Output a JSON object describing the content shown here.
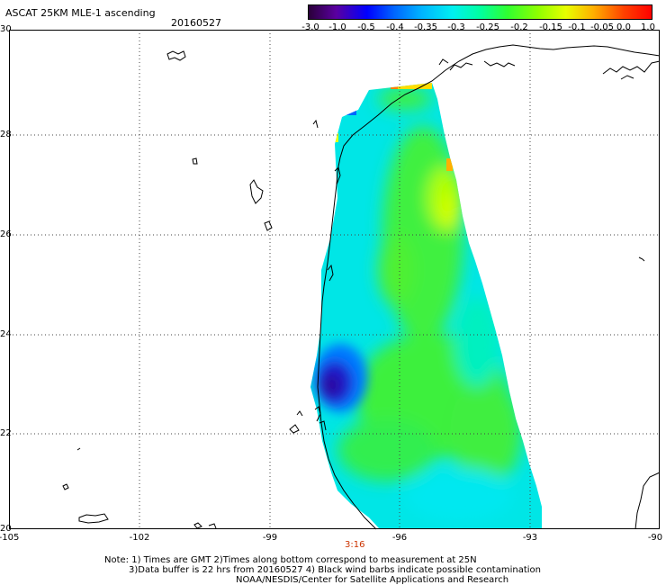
{
  "header": {
    "title": "ASCAT 25KM MLE-1 ascending",
    "date": "20160527"
  },
  "colorbar": {
    "tick_labels": [
      "-3.0",
      "-1.0",
      "-0.5",
      "-0.4",
      "-0.35",
      "-0.3",
      "-0.25",
      "-0.2",
      "-0.15",
      "-0.1",
      "-0.05",
      "0.0",
      "1.0"
    ],
    "colors": [
      "#2a003a",
      "#5a00a0",
      "#0000ff",
      "#0066ff",
      "#00b4ff",
      "#00f0f0",
      "#00ffa0",
      "#30ff30",
      "#90ff00",
      "#e8ff00",
      "#ffb000",
      "#ff4000",
      "#ff0000"
    ]
  },
  "axes": {
    "y_labels": [
      "30",
      "28",
      "26",
      "24",
      "22",
      "20"
    ],
    "x_labels": [
      "-105",
      "-102",
      "-99",
      "-96",
      "-93",
      "-90"
    ],
    "time_label": "3:16"
  },
  "notes": {
    "line1": "Note: 1) Times are GMT 2)Times along bottom correspond to measurement at 25N",
    "line2": "3)Data buffer is 22 hrs from 20160527 4) Black wind barbs indicate possible contamination",
    "line3": "NOAA/NESDIS/Center for Satellite Applications and Research"
  },
  "colors": {
    "coast": "#000000",
    "swath_base": "#00e6e6",
    "swath_green": "#30f040",
    "deep_blue": "#1a1acc"
  }
}
